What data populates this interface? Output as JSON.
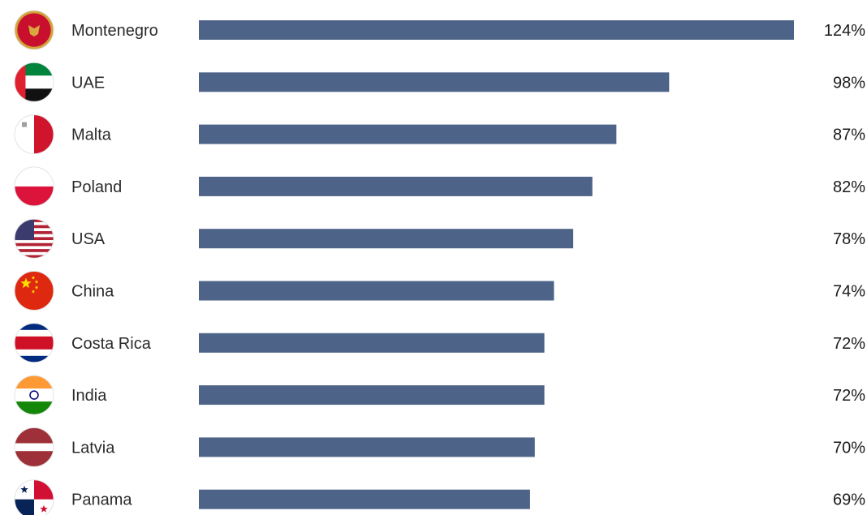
{
  "chart_data": {
    "type": "bar",
    "orientation": "horizontal",
    "categories": [
      "Montenegro",
      "UAE",
      "Malta",
      "Poland",
      "USA",
      "China",
      "Costa Rica",
      "India",
      "Latvia",
      "Panama"
    ],
    "values": [
      124,
      98,
      87,
      82,
      78,
      74,
      72,
      72,
      70,
      69
    ],
    "value_labels": [
      "124%",
      "98%",
      "87%",
      "82%",
      "78%",
      "74%",
      "72%",
      "72%",
      "70%",
      "69%"
    ],
    "flags": [
      "montenegro-flag-icon",
      "uae-flag-icon",
      "malta-flag-icon",
      "poland-flag-icon",
      "usa-flag-icon",
      "china-flag-icon",
      "costa-rica-flag-icon",
      "india-flag-icon",
      "latvia-flag-icon",
      "panama-flag-icon"
    ],
    "bar_color": "#4e6388",
    "title": "",
    "xlabel": "",
    "ylabel": "",
    "xlim": [
      0,
      124
    ],
    "grid": false,
    "legend": "none"
  }
}
